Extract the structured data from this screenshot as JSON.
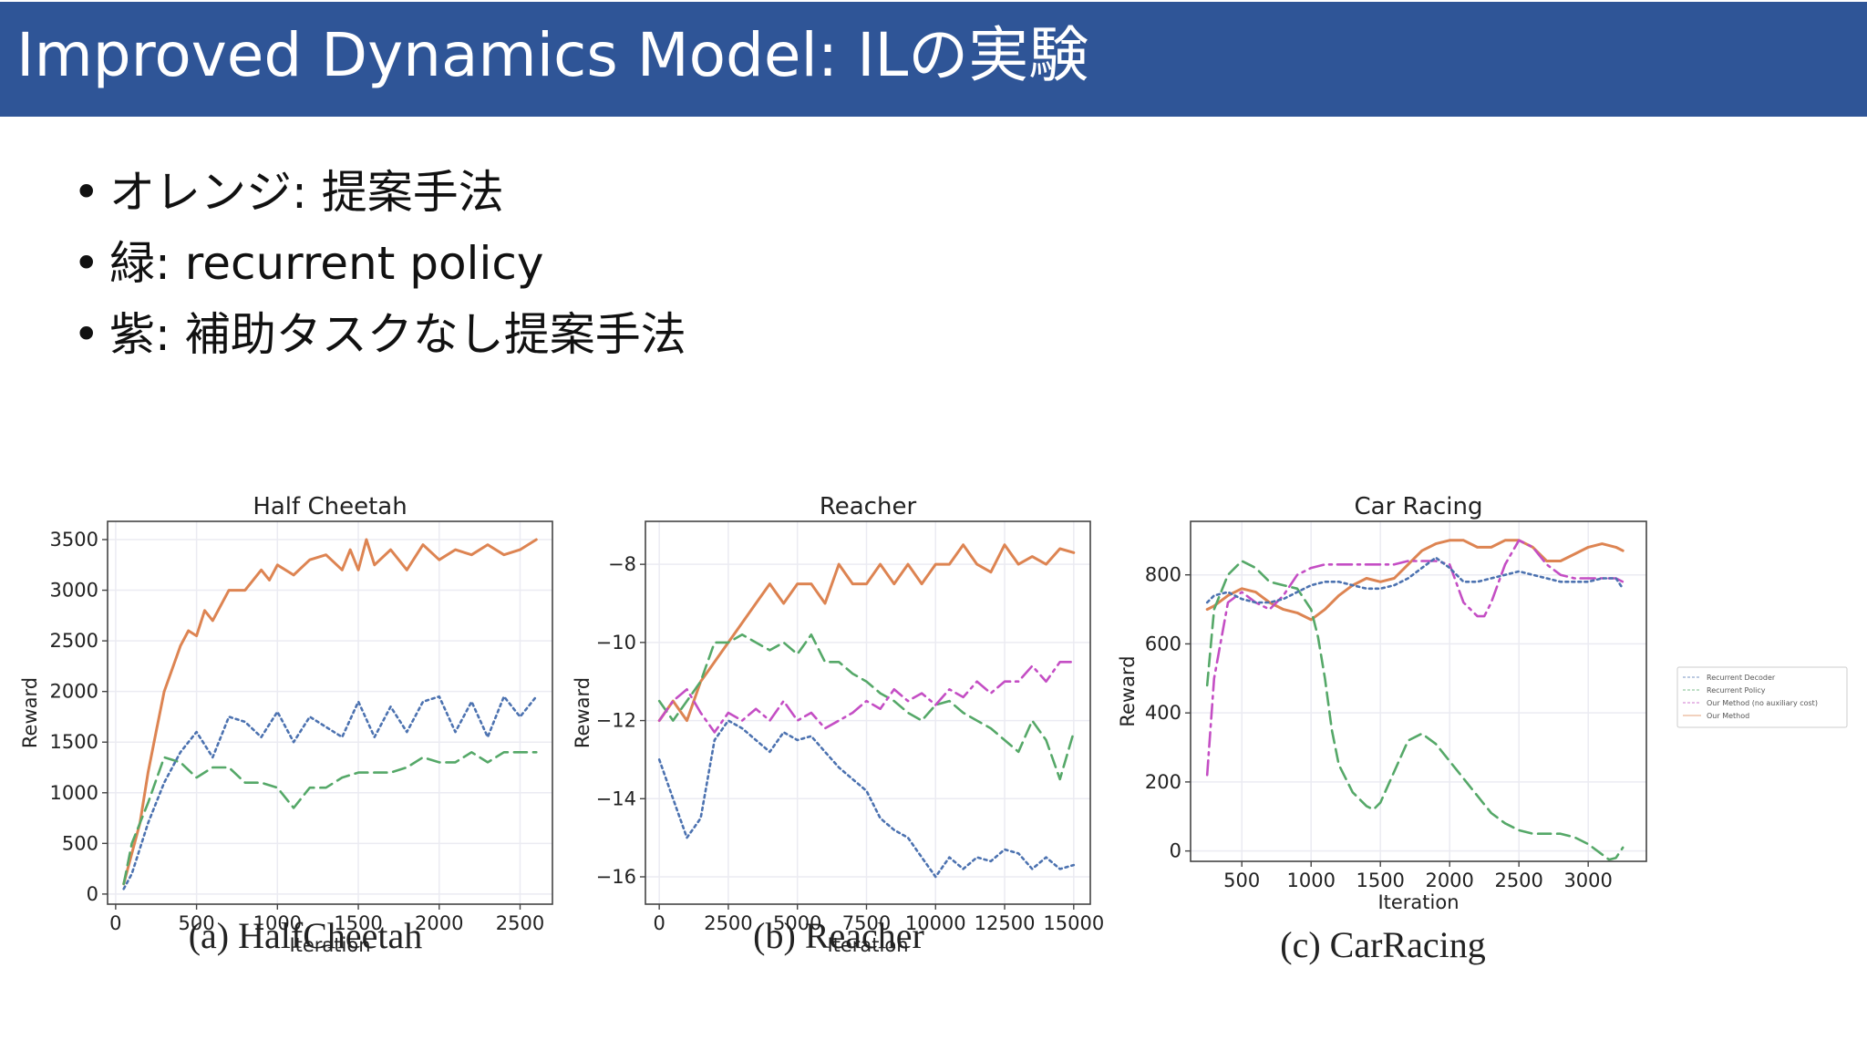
{
  "slide": {
    "title": "Improved Dynamics Model: ILの実験",
    "bullets": [
      {
        "marker": "•",
        "text": "オレンジ: 提案手法"
      },
      {
        "marker": "•",
        "text": "緑: recurrent policy"
      },
      {
        "marker": "•",
        "text": "紫: 補助タスクなし提案手法"
      }
    ]
  },
  "colors": {
    "title_bar": "#2f5597",
    "orange": "#dd8452",
    "green": "#55a868",
    "purple": "#c44ec4",
    "blue": "#4c72b0",
    "grid": "#ebebf2"
  },
  "chart_data": [
    {
      "type": "line",
      "title": "Half Cheetah",
      "caption": "(a) HalfCheetah",
      "xlabel": "Iteration",
      "ylabel": "Reward",
      "xlim": [
        -50,
        2700
      ],
      "ylim": [
        -100,
        3680
      ],
      "xticks": [
        0,
        500,
        1000,
        1500,
        2000,
        2500
      ],
      "yticks": [
        0,
        500,
        1000,
        1500,
        2000,
        2500,
        3000,
        3500
      ],
      "grid": true,
      "series": [
        {
          "key": "orange",
          "style": "solid",
          "x": [
            50,
            100,
            150,
            200,
            250,
            300,
            400,
            450,
            500,
            550,
            600,
            700,
            800,
            900,
            950,
            1000,
            1100,
            1200,
            1300,
            1400,
            1450,
            1500,
            1550,
            1600,
            1700,
            1800,
            1900,
            2000,
            2100,
            2200,
            2300,
            2400,
            2500,
            2600
          ],
          "y": [
            100,
            400,
            700,
            1200,
            1600,
            2000,
            2450,
            2600,
            2550,
            2800,
            2700,
            3000,
            3000,
            3200,
            3100,
            3250,
            3150,
            3300,
            3350,
            3200,
            3400,
            3200,
            3500,
            3250,
            3400,
            3200,
            3450,
            3300,
            3400,
            3350,
            3450,
            3350,
            3400,
            3500
          ]
        },
        {
          "key": "green",
          "style": "dashed",
          "x": [
            50,
            100,
            200,
            300,
            400,
            500,
            600,
            700,
            800,
            900,
            1000,
            1100,
            1200,
            1300,
            1400,
            1500,
            1600,
            1700,
            1800,
            1900,
            2000,
            2100,
            2200,
            2300,
            2400,
            2500,
            2600
          ],
          "y": [
            100,
            500,
            900,
            1350,
            1300,
            1150,
            1250,
            1250,
            1100,
            1100,
            1050,
            850,
            1050,
            1050,
            1150,
            1200,
            1200,
            1200,
            1250,
            1350,
            1300,
            1300,
            1400,
            1300,
            1400,
            1400,
            1400
          ]
        },
        {
          "key": "blue",
          "style": "dotted",
          "x": [
            50,
            100,
            200,
            300,
            400,
            500,
            600,
            700,
            800,
            900,
            1000,
            1100,
            1200,
            1300,
            1400,
            1500,
            1600,
            1700,
            1800,
            1900,
            2000,
            2100,
            2200,
            2300,
            2400,
            2500,
            2600
          ],
          "y": [
            50,
            200,
            700,
            1100,
            1400,
            1600,
            1350,
            1750,
            1700,
            1550,
            1800,
            1500,
            1750,
            1650,
            1550,
            1900,
            1550,
            1850,
            1600,
            1900,
            1950,
            1600,
            1900,
            1550,
            1950,
            1750,
            1950
          ]
        }
      ]
    },
    {
      "type": "line",
      "title": "Reacher",
      "caption": "(b) Reacher",
      "xlabel": "Iteration",
      "ylabel": "Reward",
      "xlim": [
        -500,
        15600
      ],
      "ylim": [
        -16.7,
        -6.9
      ],
      "xticks": [
        0,
        2500,
        5000,
        7500,
        10000,
        12500,
        15000
      ],
      "yticks": [
        -16,
        -14,
        -12,
        -10,
        -8
      ],
      "grid": true,
      "series": [
        {
          "key": "orange",
          "style": "solid",
          "x": [
            0,
            500,
            1000,
            1500,
            2000,
            2500,
            3000,
            3500,
            4000,
            4500,
            5000,
            5500,
            6000,
            6500,
            7000,
            7500,
            8000,
            8500,
            9000,
            9500,
            10000,
            10500,
            11000,
            11500,
            12000,
            12500,
            13000,
            13500,
            14000,
            14500,
            15000
          ],
          "y": [
            -12,
            -11.5,
            -12,
            -11,
            -10.5,
            -10,
            -9.5,
            -9,
            -8.5,
            -9,
            -8.5,
            -8.5,
            -9,
            -8,
            -8.5,
            -8.5,
            -8,
            -8.5,
            -8,
            -8.5,
            -8,
            -8,
            -7.5,
            -8,
            -8.2,
            -7.5,
            -8,
            -7.8,
            -8,
            -7.6,
            -7.7
          ]
        },
        {
          "key": "green",
          "style": "dashed",
          "x": [
            0,
            500,
            1000,
            1500,
            2000,
            2500,
            3000,
            3500,
            4000,
            4500,
            5000,
            5500,
            6000,
            6500,
            7000,
            7500,
            8000,
            8500,
            9000,
            9500,
            10000,
            10500,
            11000,
            11500,
            12000,
            12500,
            13000,
            13500,
            14000,
            14500,
            15000
          ],
          "y": [
            -11.5,
            -12,
            -11.5,
            -11,
            -10,
            -10,
            -9.8,
            -10,
            -10.2,
            -10,
            -10.3,
            -9.8,
            -10.5,
            -10.5,
            -10.8,
            -11,
            -11.3,
            -11.5,
            -11.8,
            -12,
            -11.6,
            -11.5,
            -11.8,
            -12,
            -12.2,
            -12.5,
            -12.8,
            -12,
            -12.5,
            -13.5,
            -12.3
          ]
        },
        {
          "key": "purple",
          "style": "dashdot",
          "x": [
            0,
            500,
            1000,
            1500,
            2000,
            2500,
            3000,
            3500,
            4000,
            4500,
            5000,
            5500,
            6000,
            6500,
            7000,
            7500,
            8000,
            8500,
            9000,
            9500,
            10000,
            10500,
            11000,
            11500,
            12000,
            12500,
            13000,
            13500,
            14000,
            14500,
            15000
          ],
          "y": [
            -12,
            -11.5,
            -11.2,
            -11.8,
            -12.3,
            -11.8,
            -12,
            -11.7,
            -12,
            -11.5,
            -12,
            -11.8,
            -12.2,
            -12,
            -11.8,
            -11.5,
            -11.7,
            -11.2,
            -11.5,
            -11.3,
            -11.6,
            -11.2,
            -11.4,
            -11,
            -11.3,
            -11,
            -11,
            -10.6,
            -11,
            -10.5,
            -10.5
          ]
        },
        {
          "key": "blue",
          "style": "dotted",
          "x": [
            0,
            500,
            1000,
            1500,
            2000,
            2500,
            3000,
            3500,
            4000,
            4500,
            5000,
            5500,
            6000,
            6500,
            7000,
            7500,
            8000,
            8500,
            9000,
            9500,
            10000,
            10500,
            11000,
            11500,
            12000,
            12500,
            13000,
            13500,
            14000,
            14500,
            15000
          ],
          "y": [
            -13,
            -14,
            -15,
            -14.5,
            -12.5,
            -12,
            -12.2,
            -12.5,
            -12.8,
            -12.3,
            -12.5,
            -12.4,
            -12.8,
            -13.2,
            -13.5,
            -13.8,
            -14.5,
            -14.8,
            -15,
            -15.5,
            -16,
            -15.5,
            -15.8,
            -15.5,
            -15.6,
            -15.3,
            -15.4,
            -15.8,
            -15.5,
            -15.8,
            -15.7
          ]
        }
      ]
    },
    {
      "type": "line",
      "title": "Car Racing",
      "caption": "(c) CarRacing",
      "xlabel": "Iteration",
      "ylabel": "Reward",
      "xlim": [
        130,
        3420
      ],
      "ylim": [
        -30,
        955
      ],
      "xticks": [
        500,
        1000,
        1500,
        2000,
        2500,
        3000
      ],
      "yticks": [
        0,
        200,
        400,
        600,
        800
      ],
      "grid": true,
      "legend_position": "right",
      "legend": [
        "Recurrent Decoder",
        "Recurrent Policy",
        "Our Method (no auxiliary cost)",
        "Our Method"
      ],
      "series": [
        {
          "key": "orange",
          "style": "solid",
          "x": [
            250,
            300,
            400,
            500,
            600,
            700,
            800,
            900,
            1000,
            1100,
            1200,
            1300,
            1400,
            1500,
            1600,
            1700,
            1800,
            1900,
            2000,
            2100,
            2200,
            2300,
            2400,
            2500,
            2600,
            2700,
            2800,
            2900,
            3000,
            3100,
            3200,
            3250
          ],
          "y": [
            700,
            710,
            740,
            760,
            750,
            720,
            700,
            690,
            670,
            700,
            740,
            770,
            790,
            780,
            790,
            830,
            870,
            890,
            900,
            900,
            880,
            880,
            900,
            900,
            880,
            840,
            840,
            860,
            880,
            890,
            880,
            870
          ]
        },
        {
          "key": "green",
          "style": "dashed",
          "x": [
            250,
            300,
            400,
            500,
            600,
            700,
            800,
            900,
            1000,
            1050,
            1100,
            1150,
            1200,
            1300,
            1400,
            1450,
            1500,
            1600,
            1700,
            1800,
            1900,
            2000,
            2100,
            2200,
            2300,
            2400,
            2500,
            2600,
            2700,
            2800,
            2900,
            3000,
            3100,
            3150,
            3200,
            3250
          ],
          "y": [
            480,
            700,
            800,
            840,
            820,
            780,
            770,
            760,
            700,
            620,
            500,
            350,
            250,
            170,
            130,
            120,
            140,
            230,
            320,
            340,
            310,
            260,
            210,
            160,
            110,
            80,
            60,
            50,
            50,
            50,
            40,
            20,
            -10,
            -25,
            -20,
            10
          ]
        },
        {
          "key": "purple",
          "style": "dashdot",
          "x": [
            250,
            300,
            400,
            500,
            600,
            700,
            800,
            900,
            1000,
            1100,
            1200,
            1300,
            1400,
            1500,
            1600,
            1700,
            1800,
            1900,
            2000,
            2100,
            2200,
            2250,
            2300,
            2400,
            2500,
            2600,
            2700,
            2800,
            2900,
            3000,
            3100,
            3200,
            3250
          ],
          "y": [
            220,
            500,
            720,
            750,
            720,
            700,
            740,
            800,
            820,
            830,
            830,
            830,
            830,
            830,
            830,
            840,
            840,
            840,
            830,
            720,
            680,
            680,
            720,
            830,
            900,
            880,
            830,
            800,
            790,
            790,
            790,
            790,
            780
          ]
        },
        {
          "key": "blue",
          "style": "dotted",
          "x": [
            250,
            300,
            400,
            500,
            600,
            700,
            800,
            900,
            1000,
            1100,
            1200,
            1300,
            1400,
            1500,
            1600,
            1700,
            1800,
            1900,
            2000,
            2100,
            2200,
            2300,
            2400,
            2500,
            2600,
            2700,
            2800,
            2900,
            3000,
            3100,
            3200,
            3250
          ],
          "y": [
            720,
            740,
            750,
            730,
            720,
            720,
            730,
            750,
            770,
            780,
            780,
            770,
            760,
            760,
            770,
            790,
            820,
            850,
            820,
            780,
            780,
            790,
            800,
            810,
            800,
            790,
            780,
            780,
            780,
            790,
            790,
            760
          ]
        }
      ]
    }
  ]
}
